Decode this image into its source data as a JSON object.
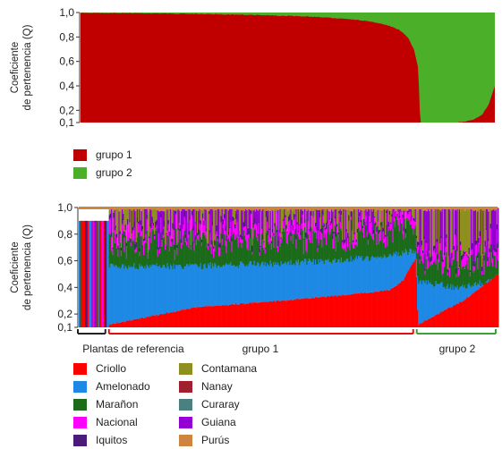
{
  "chart_data": [
    {
      "type": "area",
      "ylabel": "Coeficiente de pertenencia (Q)",
      "yticks": [
        "0,1",
        "0,2",
        "0,4",
        "0,6",
        "0,8",
        "1,0"
      ],
      "ylim": [
        0.1,
        1.0
      ],
      "series": [
        {
          "name": "grupo 1",
          "color": "#c00000"
        },
        {
          "name": "grupo 2",
          "color": "#4caf2a"
        }
      ],
      "group1_profile": [
        [
          0,
          1.0
        ],
        [
          0.1,
          0.998
        ],
        [
          0.2,
          0.995
        ],
        [
          0.3,
          0.99
        ],
        [
          0.4,
          0.985
        ],
        [
          0.5,
          0.975
        ],
        [
          0.55,
          0.97
        ],
        [
          0.6,
          0.96
        ],
        [
          0.65,
          0.95
        ],
        [
          0.7,
          0.93
        ],
        [
          0.74,
          0.9
        ],
        [
          0.77,
          0.86
        ],
        [
          0.79,
          0.8
        ],
        [
          0.805,
          0.7
        ],
        [
          0.815,
          0.55
        ],
        [
          0.82,
          0.1
        ],
        [
          0.85,
          0.1
        ],
        [
          0.9,
          0.1
        ],
        [
          0.93,
          0.11
        ],
        [
          0.95,
          0.13
        ],
        [
          0.97,
          0.17
        ],
        [
          0.985,
          0.25
        ],
        [
          1.0,
          0.4
        ]
      ]
    },
    {
      "type": "area",
      "ylabel": "Coeficiente de pertenencia (Q)",
      "yticks": [
        "0,1",
        "0,2",
        "0,4",
        "0,6",
        "0,8",
        "1,0"
      ],
      "ylim": [
        0.1,
        1.0
      ],
      "groups": [
        "Plantas de referencia",
        "grupo 1",
        "grupo 2"
      ],
      "series": [
        {
          "name": "Criollo",
          "color": "#ff0000"
        },
        {
          "name": "Amelonado",
          "color": "#1e88e5"
        },
        {
          "name": "Marañon",
          "color": "#1b6b1b"
        },
        {
          "name": "Nacional",
          "color": "#ff00ff"
        },
        {
          "name": "Iquitos",
          "color": "#4b1a7a"
        },
        {
          "name": "Contamana",
          "color": "#8f8f1f"
        },
        {
          "name": "Nanay",
          "color": "#a02030"
        },
        {
          "name": "Curaray",
          "color": "#4a8080"
        },
        {
          "name": "Guiana",
          "color": "#9400d3"
        },
        {
          "name": "Purús",
          "color": "#cd853f"
        }
      ],
      "criollo_profile": [
        [
          0.1,
          0.12
        ],
        [
          0.3,
          0.25
        ],
        [
          0.5,
          0.3
        ],
        [
          0.6,
          0.33
        ],
        [
          0.7,
          0.36
        ],
        [
          0.75,
          0.38
        ],
        [
          0.78,
          0.45
        ],
        [
          0.81,
          0.62
        ],
        [
          0.815,
          0.12
        ],
        [
          0.86,
          0.2
        ],
        [
          0.92,
          0.3
        ],
        [
          1.0,
          0.5
        ]
      ],
      "amelonado_profile": [
        [
          0.1,
          0.56
        ],
        [
          0.3,
          0.56
        ],
        [
          0.5,
          0.58
        ],
        [
          0.6,
          0.6
        ],
        [
          0.7,
          0.62
        ],
        [
          0.78,
          0.66
        ],
        [
          0.81,
          0.68
        ],
        [
          0.815,
          0.45
        ],
        [
          0.9,
          0.4
        ],
        [
          1.0,
          0.45
        ]
      ]
    }
  ],
  "legend1": [
    {
      "label": "grupo 1",
      "color": "#c00000"
    },
    {
      "label": "grupo 2",
      "color": "#4caf2a"
    }
  ],
  "legend2_col1": [
    {
      "label": "Criollo",
      "color": "#ff0000"
    },
    {
      "label": "Amelonado",
      "color": "#1e88e5"
    },
    {
      "label": "Marañon",
      "color": "#1b6b1b"
    },
    {
      "label": "Nacional",
      "color": "#ff00ff"
    },
    {
      "label": "Iquitos",
      "color": "#4b1a7a"
    }
  ],
  "legend2_col2": [
    {
      "label": "Contamana",
      "color": "#8f8f1f"
    },
    {
      "label": "Nanay",
      "color": "#a02030"
    },
    {
      "label": "Curaray",
      "color": "#4a8080"
    },
    {
      "label": "Guiana",
      "color": "#9400d3"
    },
    {
      "label": "Purús",
      "color": "#cd853f"
    }
  ]
}
